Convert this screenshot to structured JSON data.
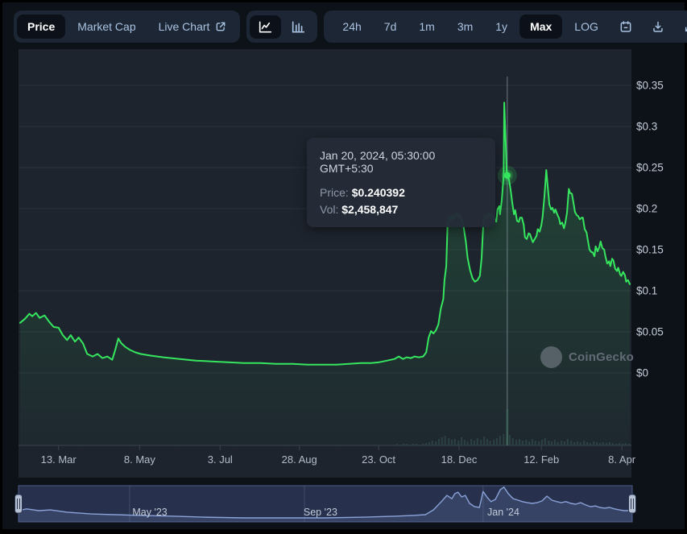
{
  "app": {
    "watermark": "CoinGecko"
  },
  "toolbar": {
    "metric_tabs": [
      {
        "label": "Price",
        "selected": true,
        "external_link": false
      },
      {
        "label": "Market Cap",
        "selected": false,
        "external_link": false
      },
      {
        "label": "Live Chart",
        "selected": false,
        "external_link": true
      }
    ],
    "chart_types": [
      {
        "name": "line-chart",
        "selected": true
      },
      {
        "name": "bar-chart",
        "selected": false
      }
    ],
    "ranges": [
      {
        "label": "24h",
        "selected": false
      },
      {
        "label": "7d",
        "selected": false
      },
      {
        "label": "1m",
        "selected": false
      },
      {
        "label": "3m",
        "selected": false
      },
      {
        "label": "1y",
        "selected": false
      },
      {
        "label": "Max",
        "selected": true
      },
      {
        "label": "LOG",
        "selected": false
      }
    ],
    "icon_buttons": [
      "calendar",
      "download",
      "expand"
    ]
  },
  "tooltip": {
    "date": "Jan 20, 2024, 05:30:00 GMT+5:30",
    "price_label": "Price:",
    "price_value": "$0.240392",
    "vol_label": "Vol:",
    "vol_value": "$2,458,847"
  },
  "chart_data": {
    "type": "line",
    "series_name": "Price (USD)",
    "x_encoding": "t = fraction of visible time range (late Feb 2023 to mid Apr 2024)",
    "ylim": [
      0,
      0.35
    ],
    "grid": "horizontal",
    "legend": "none",
    "y_ticks": [
      {
        "label": "$0.35",
        "value": 0.35
      },
      {
        "label": "$0.3",
        "value": 0.3
      },
      {
        "label": "$0.25",
        "value": 0.25
      },
      {
        "label": "$0.2",
        "value": 0.2
      },
      {
        "label": "$0.15",
        "value": 0.15
      },
      {
        "label": "$0.1",
        "value": 0.1
      },
      {
        "label": "$0.05",
        "value": 0.05
      },
      {
        "label": "$0",
        "value": 0
      }
    ],
    "x_ticks": [
      {
        "label": "13. Mar",
        "t": 0.063
      },
      {
        "label": "8. May",
        "t": 0.196
      },
      {
        "label": "3. Jul",
        "t": 0.328
      },
      {
        "label": "28. Aug",
        "t": 0.458
      },
      {
        "label": "23. Oct",
        "t": 0.588
      },
      {
        "label": "18. Dec",
        "t": 0.72
      },
      {
        "label": "12. Feb",
        "t": 0.855
      },
      {
        "label": "8. Apr",
        "t": 0.987
      }
    ],
    "points": [
      [
        0.0,
        0.061
      ],
      [
        0.008,
        0.066
      ],
      [
        0.015,
        0.072
      ],
      [
        0.02,
        0.069
      ],
      [
        0.026,
        0.073
      ],
      [
        0.032,
        0.067
      ],
      [
        0.04,
        0.07
      ],
      [
        0.048,
        0.062
      ],
      [
        0.055,
        0.056
      ],
      [
        0.063,
        0.055
      ],
      [
        0.07,
        0.046
      ],
      [
        0.077,
        0.04
      ],
      [
        0.083,
        0.046
      ],
      [
        0.09,
        0.038
      ],
      [
        0.096,
        0.043
      ],
      [
        0.103,
        0.036
      ],
      [
        0.11,
        0.023
      ],
      [
        0.119,
        0.02
      ],
      [
        0.127,
        0.023
      ],
      [
        0.135,
        0.018
      ],
      [
        0.143,
        0.02
      ],
      [
        0.151,
        0.016
      ],
      [
        0.156,
        0.028
      ],
      [
        0.161,
        0.042
      ],
      [
        0.166,
        0.036
      ],
      [
        0.172,
        0.032
      ],
      [
        0.18,
        0.028
      ],
      [
        0.189,
        0.025
      ],
      [
        0.198,
        0.023
      ],
      [
        0.215,
        0.021
      ],
      [
        0.235,
        0.019
      ],
      [
        0.262,
        0.017
      ],
      [
        0.288,
        0.015
      ],
      [
        0.314,
        0.014
      ],
      [
        0.341,
        0.013
      ],
      [
        0.367,
        0.012
      ],
      [
        0.394,
        0.012
      ],
      [
        0.42,
        0.011
      ],
      [
        0.447,
        0.011
      ],
      [
        0.473,
        0.01
      ],
      [
        0.499,
        0.01
      ],
      [
        0.519,
        0.01
      ],
      [
        0.539,
        0.011
      ],
      [
        0.559,
        0.012
      ],
      [
        0.576,
        0.012
      ],
      [
        0.589,
        0.013
      ],
      [
        0.602,
        0.015
      ],
      [
        0.614,
        0.017
      ],
      [
        0.621,
        0.02
      ],
      [
        0.628,
        0.017
      ],
      [
        0.634,
        0.019
      ],
      [
        0.641,
        0.018
      ],
      [
        0.647,
        0.02
      ],
      [
        0.654,
        0.019
      ],
      [
        0.661,
        0.02
      ],
      [
        0.666,
        0.025
      ],
      [
        0.67,
        0.043
      ],
      [
        0.674,
        0.051
      ],
      [
        0.678,
        0.048
      ],
      [
        0.682,
        0.052
      ],
      [
        0.686,
        0.059
      ],
      [
        0.69,
        0.078
      ],
      [
        0.694,
        0.09
      ],
      [
        0.696,
        0.113
      ],
      [
        0.699,
        0.13
      ],
      [
        0.701,
        0.181
      ],
      [
        0.704,
        0.19
      ],
      [
        0.707,
        0.185
      ],
      [
        0.709,
        0.192
      ],
      [
        0.712,
        0.188
      ],
      [
        0.715,
        0.195
      ],
      [
        0.717,
        0.19
      ],
      [
        0.72,
        0.193
      ],
      [
        0.723,
        0.188
      ],
      [
        0.727,
        0.18
      ],
      [
        0.731,
        0.16
      ],
      [
        0.734,
        0.14
      ],
      [
        0.738,
        0.125
      ],
      [
        0.742,
        0.115
      ],
      [
        0.746,
        0.111
      ],
      [
        0.75,
        0.113
      ],
      [
        0.754,
        0.118
      ],
      [
        0.757,
        0.14
      ],
      [
        0.76,
        0.186
      ],
      [
        0.762,
        0.192
      ],
      [
        0.765,
        0.188
      ],
      [
        0.768,
        0.195
      ],
      [
        0.77,
        0.19
      ],
      [
        0.773,
        0.193
      ],
      [
        0.775,
        0.19
      ],
      [
        0.778,
        0.188
      ],
      [
        0.781,
        0.184
      ],
      [
        0.783,
        0.199
      ],
      [
        0.786,
        0.203
      ],
      [
        0.787,
        0.193
      ],
      [
        0.79,
        0.21
      ],
      [
        0.793,
        0.24
      ],
      [
        0.794,
        0.329
      ],
      [
        0.795,
        0.31
      ],
      [
        0.797,
        0.27
      ],
      [
        0.798,
        0.245
      ],
      [
        0.799,
        0.24
      ],
      [
        0.802,
        0.235
      ],
      [
        0.805,
        0.22
      ],
      [
        0.807,
        0.208
      ],
      [
        0.81,
        0.193
      ],
      [
        0.812,
        0.198
      ],
      [
        0.815,
        0.185
      ],
      [
        0.818,
        0.184
      ],
      [
        0.82,
        0.189
      ],
      [
        0.823,
        0.189
      ],
      [
        0.826,
        0.18
      ],
      [
        0.828,
        0.165
      ],
      [
        0.831,
        0.163
      ],
      [
        0.834,
        0.17
      ],
      [
        0.836,
        0.169
      ],
      [
        0.839,
        0.163
      ],
      [
        0.841,
        0.159
      ],
      [
        0.844,
        0.163
      ],
      [
        0.847,
        0.167
      ],
      [
        0.849,
        0.175
      ],
      [
        0.852,
        0.172
      ],
      [
        0.855,
        0.18
      ],
      [
        0.857,
        0.19
      ],
      [
        0.86,
        0.215
      ],
      [
        0.863,
        0.247
      ],
      [
        0.865,
        0.23
      ],
      [
        0.868,
        0.205
      ],
      [
        0.871,
        0.199
      ],
      [
        0.873,
        0.201
      ],
      [
        0.876,
        0.195
      ],
      [
        0.878,
        0.199
      ],
      [
        0.881,
        0.193
      ],
      [
        0.884,
        0.188
      ],
      [
        0.886,
        0.181
      ],
      [
        0.889,
        0.183
      ],
      [
        0.892,
        0.176
      ],
      [
        0.894,
        0.182
      ],
      [
        0.897,
        0.195
      ],
      [
        0.9,
        0.224
      ],
      [
        0.902,
        0.219
      ],
      [
        0.905,
        0.218
      ],
      [
        0.908,
        0.205
      ],
      [
        0.91,
        0.196
      ],
      [
        0.913,
        0.192
      ],
      [
        0.915,
        0.191
      ],
      [
        0.918,
        0.187
      ],
      [
        0.921,
        0.189
      ],
      [
        0.923,
        0.189
      ],
      [
        0.926,
        0.175
      ],
      [
        0.929,
        0.171
      ],
      [
        0.931,
        0.162
      ],
      [
        0.934,
        0.15
      ],
      [
        0.937,
        0.147
      ],
      [
        0.939,
        0.147
      ],
      [
        0.942,
        0.142
      ],
      [
        0.944,
        0.154
      ],
      [
        0.947,
        0.148
      ],
      [
        0.95,
        0.153
      ],
      [
        0.952,
        0.16
      ],
      [
        0.955,
        0.152
      ],
      [
        0.958,
        0.15
      ],
      [
        0.96,
        0.142
      ],
      [
        0.963,
        0.133
      ],
      [
        0.966,
        0.136
      ],
      [
        0.968,
        0.13
      ],
      [
        0.971,
        0.139
      ],
      [
        0.973,
        0.137
      ],
      [
        0.976,
        0.127
      ],
      [
        0.979,
        0.124
      ],
      [
        0.981,
        0.128
      ],
      [
        0.984,
        0.12
      ],
      [
        0.986,
        0.118
      ],
      [
        0.989,
        0.123
      ],
      [
        0.992,
        0.119
      ],
      [
        0.994,
        0.111
      ],
      [
        0.997,
        0.113
      ],
      [
        1.0,
        0.108
      ]
    ],
    "highlight": {
      "t": 0.799,
      "price": 0.240392
    },
    "volume_bar_unit": "relative height, max 45",
    "volume_bars": [
      [
        0.1,
        1
      ],
      [
        0.18,
        1
      ],
      [
        0.26,
        1
      ],
      [
        0.35,
        1
      ],
      [
        0.44,
        1
      ],
      [
        0.52,
        1
      ],
      [
        0.58,
        1
      ],
      [
        0.618,
        2
      ],
      [
        0.624,
        1
      ],
      [
        0.629,
        2
      ],
      [
        0.634,
        2
      ],
      [
        0.639,
        1
      ],
      [
        0.645,
        2
      ],
      [
        0.65,
        2
      ],
      [
        0.655,
        1
      ],
      [
        0.661,
        2
      ],
      [
        0.666,
        3
      ],
      [
        0.671,
        4
      ],
      [
        0.676,
        6
      ],
      [
        0.682,
        5
      ],
      [
        0.687,
        8
      ],
      [
        0.692,
        10
      ],
      [
        0.697,
        12
      ],
      [
        0.703,
        9
      ],
      [
        0.708,
        7
      ],
      [
        0.713,
        8
      ],
      [
        0.719,
        6
      ],
      [
        0.724,
        10
      ],
      [
        0.729,
        7
      ],
      [
        0.734,
        5
      ],
      [
        0.74,
        8
      ],
      [
        0.745,
        6
      ],
      [
        0.75,
        9
      ],
      [
        0.756,
        7
      ],
      [
        0.761,
        11
      ],
      [
        0.766,
        8
      ],
      [
        0.771,
        6
      ],
      [
        0.777,
        7
      ],
      [
        0.782,
        9
      ],
      [
        0.787,
        12
      ],
      [
        0.793,
        14
      ],
      [
        0.798,
        10
      ],
      [
        0.803,
        13
      ],
      [
        0.808,
        9
      ],
      [
        0.814,
        7
      ],
      [
        0.819,
        8
      ],
      [
        0.824,
        6
      ],
      [
        0.83,
        7
      ],
      [
        0.835,
        5
      ],
      [
        0.84,
        8
      ],
      [
        0.845,
        6
      ],
      [
        0.851,
        5
      ],
      [
        0.856,
        7
      ],
      [
        0.861,
        9
      ],
      [
        0.867,
        6
      ],
      [
        0.872,
        5
      ],
      [
        0.877,
        7
      ],
      [
        0.882,
        4
      ],
      [
        0.888,
        6
      ],
      [
        0.893,
        5
      ],
      [
        0.898,
        8
      ],
      [
        0.904,
        6
      ],
      [
        0.909,
        4
      ],
      [
        0.914,
        5
      ],
      [
        0.919,
        4
      ],
      [
        0.925,
        6
      ],
      [
        0.93,
        4
      ],
      [
        0.935,
        3
      ],
      [
        0.941,
        5
      ],
      [
        0.946,
        4
      ],
      [
        0.951,
        3
      ],
      [
        0.956,
        4
      ],
      [
        0.962,
        3
      ],
      [
        0.967,
        4
      ],
      [
        0.972,
        3
      ],
      [
        0.978,
        2
      ],
      [
        0.983,
        3
      ],
      [
        0.988,
        2
      ],
      [
        0.993,
        3
      ],
      [
        0.999,
        2
      ]
    ],
    "highlight_volume_bar": {
      "t": 0.799,
      "h": 45
    },
    "line_color": "#35e65e"
  },
  "navigator": {
    "labels": [
      {
        "label": "May '23",
        "t": 0.214
      },
      {
        "label": "Sep '23",
        "t": 0.492
      },
      {
        "label": "Jan '24",
        "t": 0.79
      }
    ],
    "gridlines_t": [
      0.181,
      0.466,
      0.757
    ],
    "line_color": "#8aa2d8",
    "points": [
      [
        0.0,
        0.69
      ],
      [
        0.013,
        0.64
      ],
      [
        0.033,
        0.69
      ],
      [
        0.052,
        0.67
      ],
      [
        0.079,
        0.73
      ],
      [
        0.118,
        0.78
      ],
      [
        0.157,
        0.8
      ],
      [
        0.197,
        0.82
      ],
      [
        0.249,
        0.84
      ],
      [
        0.302,
        0.87
      ],
      [
        0.367,
        0.89
      ],
      [
        0.433,
        0.89
      ],
      [
        0.499,
        0.89
      ],
      [
        0.564,
        0.87
      ],
      [
        0.617,
        0.84
      ],
      [
        0.643,
        0.82
      ],
      [
        0.663,
        0.8
      ],
      [
        0.676,
        0.67
      ],
      [
        0.689,
        0.44
      ],
      [
        0.698,
        0.27
      ],
      [
        0.706,
        0.36
      ],
      [
        0.711,
        0.22
      ],
      [
        0.716,
        0.18
      ],
      [
        0.722,
        0.31
      ],
      [
        0.728,
        0.27
      ],
      [
        0.735,
        0.49
      ],
      [
        0.743,
        0.58
      ],
      [
        0.751,
        0.6
      ],
      [
        0.757,
        0.16
      ],
      [
        0.764,
        0.33
      ],
      [
        0.77,
        0.44
      ],
      [
        0.777,
        0.38
      ],
      [
        0.785,
        0.11
      ],
      [
        0.791,
        0.04
      ],
      [
        0.798,
        0.22
      ],
      [
        0.806,
        0.36
      ],
      [
        0.814,
        0.4
      ],
      [
        0.821,
        0.44
      ],
      [
        0.829,
        0.47
      ],
      [
        0.837,
        0.49
      ],
      [
        0.845,
        0.47
      ],
      [
        0.853,
        0.42
      ],
      [
        0.861,
        0.29
      ],
      [
        0.869,
        0.4
      ],
      [
        0.877,
        0.44
      ],
      [
        0.884,
        0.47
      ],
      [
        0.892,
        0.44
      ],
      [
        0.9,
        0.49
      ],
      [
        0.908,
        0.51
      ],
      [
        0.916,
        0.47
      ],
      [
        0.924,
        0.53
      ],
      [
        0.932,
        0.58
      ],
      [
        0.94,
        0.56
      ],
      [
        0.947,
        0.6
      ],
      [
        0.955,
        0.62
      ],
      [
        0.963,
        0.6
      ],
      [
        0.971,
        0.64
      ],
      [
        0.979,
        0.67
      ],
      [
        0.987,
        0.69
      ],
      [
        1.0,
        0.69
      ]
    ]
  },
  "colors": {
    "accent_green": "#35e65e",
    "toolbar_text": "#a9c3e2",
    "selected_bg": "#0c1119",
    "group_bg": "#1d2634",
    "plot_bg": "#1e242e",
    "page_bg": "#0d1118",
    "grid_line": "#2a313d",
    "axis_label": "#c6cedb",
    "volume_bar": "#2c4143",
    "volume_highlight": "#3c6157",
    "crosshair": "#949eadb0",
    "nav_bg": "#27314d",
    "nav_border": "#4d5c85",
    "nav_line": "#8aa2d8",
    "nav_label": "#c2cad8",
    "handle": "#b7c2d4"
  }
}
